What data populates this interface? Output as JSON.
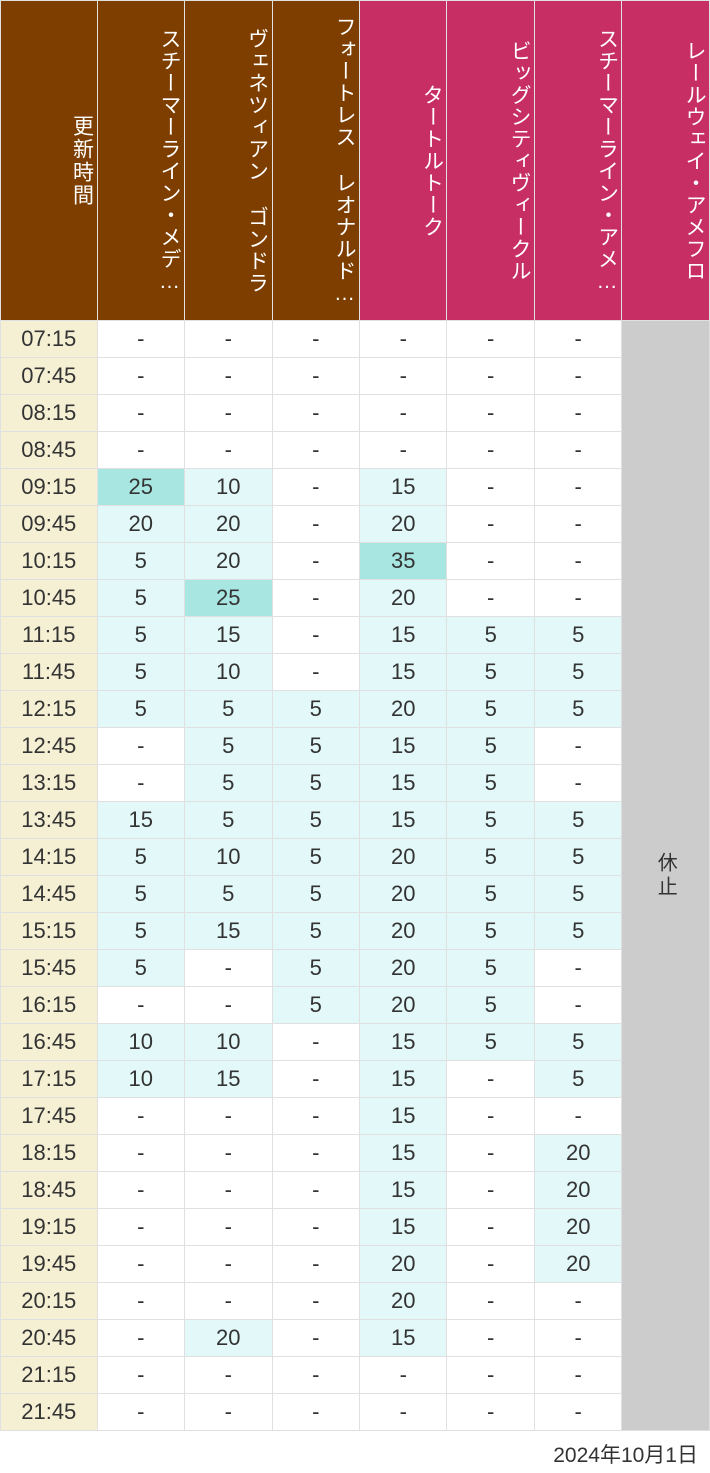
{
  "header": {
    "time_label": "更新時間",
    "columns": [
      {
        "label": "スチーマーライン・メデ…",
        "bg": "#7d3e00"
      },
      {
        "label": "ヴェネツィアン ゴンドラ",
        "bg": "#7d3e00"
      },
      {
        "label": "フォートレス レオナルド…",
        "bg": "#7d3e00"
      },
      {
        "label": "タートルトーク",
        "bg": "#c72f64"
      },
      {
        "label": "ビッグシティヴィークル",
        "bg": "#c72f64"
      },
      {
        "label": "スチーマーライン・アメ…",
        "bg": "#c72f64"
      },
      {
        "label": "レールウェイ・アメフロ",
        "bg": "#c72f64"
      }
    ],
    "time_bg": "#7d3e00"
  },
  "colors": {
    "time_col_bg": "#f5f0d4",
    "cell_white": "#ffffff",
    "cell_light": "#e3f8f8",
    "cell_mid": "#a8e6e2",
    "closed_bg": "#cccccc"
  },
  "closed_label": "休止",
  "times": [
    "07:15",
    "07:45",
    "08:15",
    "08:45",
    "09:15",
    "09:45",
    "10:15",
    "10:45",
    "11:15",
    "11:45",
    "12:15",
    "12:45",
    "13:15",
    "13:45",
    "14:15",
    "14:45",
    "15:15",
    "15:45",
    "16:15",
    "16:45",
    "17:15",
    "17:45",
    "18:15",
    "18:45",
    "19:15",
    "19:45",
    "20:15",
    "20:45",
    "21:15",
    "21:45"
  ],
  "data": [
    [
      {
        "v": "-",
        "c": "white"
      },
      {
        "v": "-",
        "c": "white"
      },
      {
        "v": "-",
        "c": "white"
      },
      {
        "v": "-",
        "c": "white"
      },
      {
        "v": "-",
        "c": "white"
      },
      {
        "v": "-",
        "c": "white"
      }
    ],
    [
      {
        "v": "-",
        "c": "white"
      },
      {
        "v": "-",
        "c": "white"
      },
      {
        "v": "-",
        "c": "white"
      },
      {
        "v": "-",
        "c": "white"
      },
      {
        "v": "-",
        "c": "white"
      },
      {
        "v": "-",
        "c": "white"
      }
    ],
    [
      {
        "v": "-",
        "c": "white"
      },
      {
        "v": "-",
        "c": "white"
      },
      {
        "v": "-",
        "c": "white"
      },
      {
        "v": "-",
        "c": "white"
      },
      {
        "v": "-",
        "c": "white"
      },
      {
        "v": "-",
        "c": "white"
      }
    ],
    [
      {
        "v": "-",
        "c": "white"
      },
      {
        "v": "-",
        "c": "white"
      },
      {
        "v": "-",
        "c": "white"
      },
      {
        "v": "-",
        "c": "white"
      },
      {
        "v": "-",
        "c": "white"
      },
      {
        "v": "-",
        "c": "white"
      }
    ],
    [
      {
        "v": "25",
        "c": "mid"
      },
      {
        "v": "10",
        "c": "light"
      },
      {
        "v": "-",
        "c": "white"
      },
      {
        "v": "15",
        "c": "light"
      },
      {
        "v": "-",
        "c": "white"
      },
      {
        "v": "-",
        "c": "white"
      }
    ],
    [
      {
        "v": "20",
        "c": "light"
      },
      {
        "v": "20",
        "c": "light"
      },
      {
        "v": "-",
        "c": "white"
      },
      {
        "v": "20",
        "c": "light"
      },
      {
        "v": "-",
        "c": "white"
      },
      {
        "v": "-",
        "c": "white"
      }
    ],
    [
      {
        "v": "5",
        "c": "light"
      },
      {
        "v": "20",
        "c": "light"
      },
      {
        "v": "-",
        "c": "white"
      },
      {
        "v": "35",
        "c": "mid"
      },
      {
        "v": "-",
        "c": "white"
      },
      {
        "v": "-",
        "c": "white"
      }
    ],
    [
      {
        "v": "5",
        "c": "light"
      },
      {
        "v": "25",
        "c": "mid"
      },
      {
        "v": "-",
        "c": "white"
      },
      {
        "v": "20",
        "c": "light"
      },
      {
        "v": "-",
        "c": "white"
      },
      {
        "v": "-",
        "c": "white"
      }
    ],
    [
      {
        "v": "5",
        "c": "light"
      },
      {
        "v": "15",
        "c": "light"
      },
      {
        "v": "-",
        "c": "white"
      },
      {
        "v": "15",
        "c": "light"
      },
      {
        "v": "5",
        "c": "light"
      },
      {
        "v": "5",
        "c": "light"
      }
    ],
    [
      {
        "v": "5",
        "c": "light"
      },
      {
        "v": "10",
        "c": "light"
      },
      {
        "v": "-",
        "c": "white"
      },
      {
        "v": "15",
        "c": "light"
      },
      {
        "v": "5",
        "c": "light"
      },
      {
        "v": "5",
        "c": "light"
      }
    ],
    [
      {
        "v": "5",
        "c": "light"
      },
      {
        "v": "5",
        "c": "light"
      },
      {
        "v": "5",
        "c": "light"
      },
      {
        "v": "20",
        "c": "light"
      },
      {
        "v": "5",
        "c": "light"
      },
      {
        "v": "5",
        "c": "light"
      }
    ],
    [
      {
        "v": "-",
        "c": "white"
      },
      {
        "v": "5",
        "c": "light"
      },
      {
        "v": "5",
        "c": "light"
      },
      {
        "v": "15",
        "c": "light"
      },
      {
        "v": "5",
        "c": "light"
      },
      {
        "v": "-",
        "c": "white"
      }
    ],
    [
      {
        "v": "-",
        "c": "white"
      },
      {
        "v": "5",
        "c": "light"
      },
      {
        "v": "5",
        "c": "light"
      },
      {
        "v": "15",
        "c": "light"
      },
      {
        "v": "5",
        "c": "light"
      },
      {
        "v": "-",
        "c": "white"
      }
    ],
    [
      {
        "v": "15",
        "c": "light"
      },
      {
        "v": "5",
        "c": "light"
      },
      {
        "v": "5",
        "c": "light"
      },
      {
        "v": "15",
        "c": "light"
      },
      {
        "v": "5",
        "c": "light"
      },
      {
        "v": "5",
        "c": "light"
      }
    ],
    [
      {
        "v": "5",
        "c": "light"
      },
      {
        "v": "10",
        "c": "light"
      },
      {
        "v": "5",
        "c": "light"
      },
      {
        "v": "20",
        "c": "light"
      },
      {
        "v": "5",
        "c": "light"
      },
      {
        "v": "5",
        "c": "light"
      }
    ],
    [
      {
        "v": "5",
        "c": "light"
      },
      {
        "v": "5",
        "c": "light"
      },
      {
        "v": "5",
        "c": "light"
      },
      {
        "v": "20",
        "c": "light"
      },
      {
        "v": "5",
        "c": "light"
      },
      {
        "v": "5",
        "c": "light"
      }
    ],
    [
      {
        "v": "5",
        "c": "light"
      },
      {
        "v": "15",
        "c": "light"
      },
      {
        "v": "5",
        "c": "light"
      },
      {
        "v": "20",
        "c": "light"
      },
      {
        "v": "5",
        "c": "light"
      },
      {
        "v": "5",
        "c": "light"
      }
    ],
    [
      {
        "v": "5",
        "c": "light"
      },
      {
        "v": "-",
        "c": "white"
      },
      {
        "v": "5",
        "c": "light"
      },
      {
        "v": "20",
        "c": "light"
      },
      {
        "v": "5",
        "c": "light"
      },
      {
        "v": "-",
        "c": "white"
      }
    ],
    [
      {
        "v": "-",
        "c": "white"
      },
      {
        "v": "-",
        "c": "white"
      },
      {
        "v": "5",
        "c": "light"
      },
      {
        "v": "20",
        "c": "light"
      },
      {
        "v": "5",
        "c": "light"
      },
      {
        "v": "-",
        "c": "white"
      }
    ],
    [
      {
        "v": "10",
        "c": "light"
      },
      {
        "v": "10",
        "c": "light"
      },
      {
        "v": "-",
        "c": "white"
      },
      {
        "v": "15",
        "c": "light"
      },
      {
        "v": "5",
        "c": "light"
      },
      {
        "v": "5",
        "c": "light"
      }
    ],
    [
      {
        "v": "10",
        "c": "light"
      },
      {
        "v": "15",
        "c": "light"
      },
      {
        "v": "-",
        "c": "white"
      },
      {
        "v": "15",
        "c": "light"
      },
      {
        "v": "-",
        "c": "white"
      },
      {
        "v": "5",
        "c": "light"
      }
    ],
    [
      {
        "v": "-",
        "c": "white"
      },
      {
        "v": "-",
        "c": "white"
      },
      {
        "v": "-",
        "c": "white"
      },
      {
        "v": "15",
        "c": "light"
      },
      {
        "v": "-",
        "c": "white"
      },
      {
        "v": "-",
        "c": "white"
      }
    ],
    [
      {
        "v": "-",
        "c": "white"
      },
      {
        "v": "-",
        "c": "white"
      },
      {
        "v": "-",
        "c": "white"
      },
      {
        "v": "15",
        "c": "light"
      },
      {
        "v": "-",
        "c": "white"
      },
      {
        "v": "20",
        "c": "light"
      }
    ],
    [
      {
        "v": "-",
        "c": "white"
      },
      {
        "v": "-",
        "c": "white"
      },
      {
        "v": "-",
        "c": "white"
      },
      {
        "v": "15",
        "c": "light"
      },
      {
        "v": "-",
        "c": "white"
      },
      {
        "v": "20",
        "c": "light"
      }
    ],
    [
      {
        "v": "-",
        "c": "white"
      },
      {
        "v": "-",
        "c": "white"
      },
      {
        "v": "-",
        "c": "white"
      },
      {
        "v": "15",
        "c": "light"
      },
      {
        "v": "-",
        "c": "white"
      },
      {
        "v": "20",
        "c": "light"
      }
    ],
    [
      {
        "v": "-",
        "c": "white"
      },
      {
        "v": "-",
        "c": "white"
      },
      {
        "v": "-",
        "c": "white"
      },
      {
        "v": "20",
        "c": "light"
      },
      {
        "v": "-",
        "c": "white"
      },
      {
        "v": "20",
        "c": "light"
      }
    ],
    [
      {
        "v": "-",
        "c": "white"
      },
      {
        "v": "-",
        "c": "white"
      },
      {
        "v": "-",
        "c": "white"
      },
      {
        "v": "20",
        "c": "light"
      },
      {
        "v": "-",
        "c": "white"
      },
      {
        "v": "-",
        "c": "white"
      }
    ],
    [
      {
        "v": "-",
        "c": "white"
      },
      {
        "v": "20",
        "c": "light"
      },
      {
        "v": "-",
        "c": "white"
      },
      {
        "v": "15",
        "c": "light"
      },
      {
        "v": "-",
        "c": "white"
      },
      {
        "v": "-",
        "c": "white"
      }
    ],
    [
      {
        "v": "-",
        "c": "white"
      },
      {
        "v": "-",
        "c": "white"
      },
      {
        "v": "-",
        "c": "white"
      },
      {
        "v": "-",
        "c": "white"
      },
      {
        "v": "-",
        "c": "white"
      },
      {
        "v": "-",
        "c": "white"
      }
    ],
    [
      {
        "v": "-",
        "c": "white"
      },
      {
        "v": "-",
        "c": "white"
      },
      {
        "v": "-",
        "c": "white"
      },
      {
        "v": "-",
        "c": "white"
      },
      {
        "v": "-",
        "c": "white"
      },
      {
        "v": "-",
        "c": "white"
      }
    ]
  ],
  "footer_date": "2024年10月1日"
}
